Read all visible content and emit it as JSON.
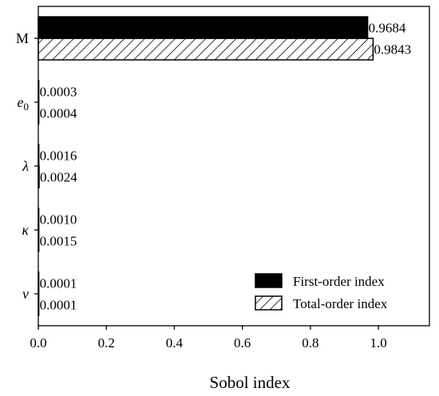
{
  "chart_data": {
    "type": "bar",
    "orientation": "horizontal",
    "categories": [
      "M",
      "e0",
      "λ",
      "κ",
      "ν"
    ],
    "category_display": [
      {
        "main": "M",
        "sub": "",
        "italic": false
      },
      {
        "main": "e",
        "sub": "0",
        "italic": true
      },
      {
        "main": "λ",
        "sub": "",
        "italic": true
      },
      {
        "main": "κ",
        "sub": "",
        "italic": true
      },
      {
        "main": "ν",
        "sub": "",
        "italic": true
      }
    ],
    "series": [
      {
        "name": "First-order index",
        "values": [
          0.9684,
          0.0003,
          0.0016,
          0.001,
          0.0001
        ],
        "fill": "solid",
        "color": "#000000"
      },
      {
        "name": "Total-order index",
        "values": [
          0.9843,
          0.0004,
          0.0024,
          0.0015,
          0.0001
        ],
        "fill": "hatch",
        "color": "#000000"
      }
    ],
    "data_labels": [
      [
        "0.9684",
        "0.0003",
        "0.0016",
        "0.0010",
        "0.0001"
      ],
      [
        "0.9843",
        "0.0004",
        "0.0024",
        "0.0015",
        "0.0001"
      ]
    ],
    "xlabel": "Sobol index",
    "ylabel": "",
    "title": "",
    "xlim": [
      0,
      1.15
    ],
    "xticks": [
      0.0,
      0.2,
      0.4,
      0.6,
      0.8,
      1.0
    ],
    "xtick_labels": [
      "0.0",
      "0.2",
      "0.4",
      "0.6",
      "0.8",
      "1.0"
    ],
    "grid": false,
    "legend_position": "bottom-right"
  }
}
